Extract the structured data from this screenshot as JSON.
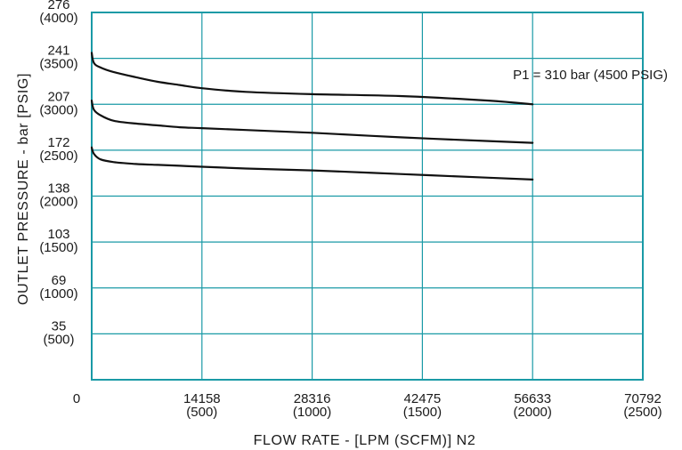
{
  "chart_data": {
    "type": "line",
    "xlabel": "FLOW RATE - [LPM (SCFM)] N2",
    "ylabel": "OUTLET PRESSURE - bar [PSIG]",
    "xlim": [
      0,
      2500
    ],
    "ylim": [
      0,
      4000
    ],
    "grid": true,
    "colors": {
      "grid": "#1a9aa6",
      "line": "#111111",
      "text": "#1a1a1a"
    },
    "x_ticks": [
      {
        "value": 0,
        "label1": "0",
        "label2": ""
      },
      {
        "value": 500,
        "label1": "14158",
        "label2": "(500)"
      },
      {
        "value": 1000,
        "label1": "28316",
        "label2": "(1000)"
      },
      {
        "value": 1500,
        "label1": "42475",
        "label2": "(1500)"
      },
      {
        "value": 2000,
        "label1": "56633",
        "label2": "(2000)"
      },
      {
        "value": 2500,
        "label1": "70792",
        "label2": "(2500)"
      }
    ],
    "y_ticks": [
      {
        "value": 500,
        "label1": "35",
        "label2": "(500)"
      },
      {
        "value": 1000,
        "label1": "69",
        "label2": "(1000)"
      },
      {
        "value": 1500,
        "label1": "103",
        "label2": "(1500)"
      },
      {
        "value": 2000,
        "label1": "138",
        "label2": "(2000)"
      },
      {
        "value": 2500,
        "label1": "172",
        "label2": "(2500)"
      },
      {
        "value": 3000,
        "label1": "207",
        "label2": "(3000)"
      },
      {
        "value": 3500,
        "label1": "241",
        "label2": "(3500)"
      },
      {
        "value": 4000,
        "label1": "276",
        "label2": "(4000)"
      }
    ],
    "series": [
      {
        "x": [
          0,
          10,
          40,
          100,
          200,
          300,
          400,
          500,
          700,
          1000,
          1400,
          1800,
          2000
        ],
        "y": [
          3560,
          3450,
          3400,
          3350,
          3295,
          3245,
          3210,
          3175,
          3135,
          3110,
          3090,
          3040,
          3000
        ]
      },
      {
        "x": [
          0,
          10,
          40,
          100,
          200,
          300,
          400,
          500,
          700,
          1000,
          1400,
          1800,
          2000
        ],
        "y": [
          3040,
          2940,
          2880,
          2820,
          2790,
          2770,
          2750,
          2740,
          2720,
          2690,
          2640,
          2600,
          2580
        ]
      },
      {
        "x": [
          0,
          10,
          40,
          100,
          200,
          300,
          400,
          500,
          700,
          1000,
          1400,
          1800,
          2000
        ],
        "y": [
          2530,
          2460,
          2400,
          2370,
          2350,
          2340,
          2330,
          2320,
          2300,
          2280,
          2240,
          2200,
          2180
        ]
      }
    ],
    "annotations": [
      {
        "text": "P1 = 310 bar (4500 PSIG)",
        "x": 2250,
        "y": 3320
      }
    ]
  }
}
